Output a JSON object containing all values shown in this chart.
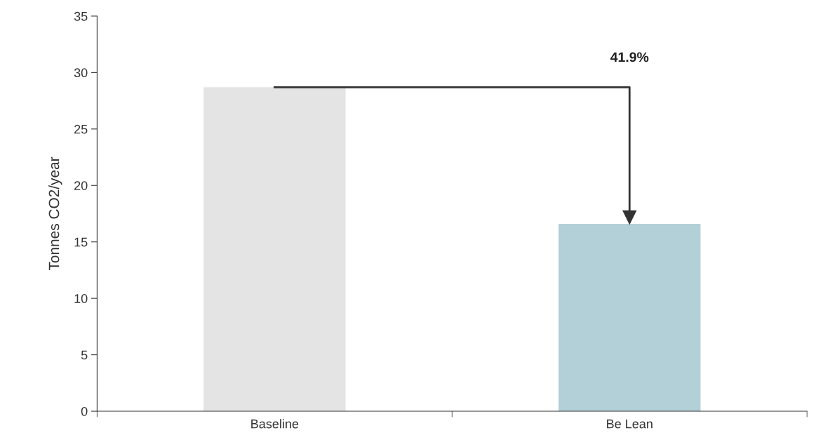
{
  "chart_data": {
    "type": "bar",
    "ylabel": "Tonnes CO2/year",
    "categories": [
      "Baseline",
      "Be Lean"
    ],
    "values": [
      28.7,
      16.6
    ],
    "colors": [
      "#e4e4e4",
      "#b3cfd7"
    ],
    "ylim": [
      0,
      35
    ],
    "yticks": [
      0,
      5,
      10,
      15,
      20,
      25,
      30,
      35
    ],
    "annotations": [
      "41.9%"
    ],
    "grid": false,
    "legend": false
  }
}
